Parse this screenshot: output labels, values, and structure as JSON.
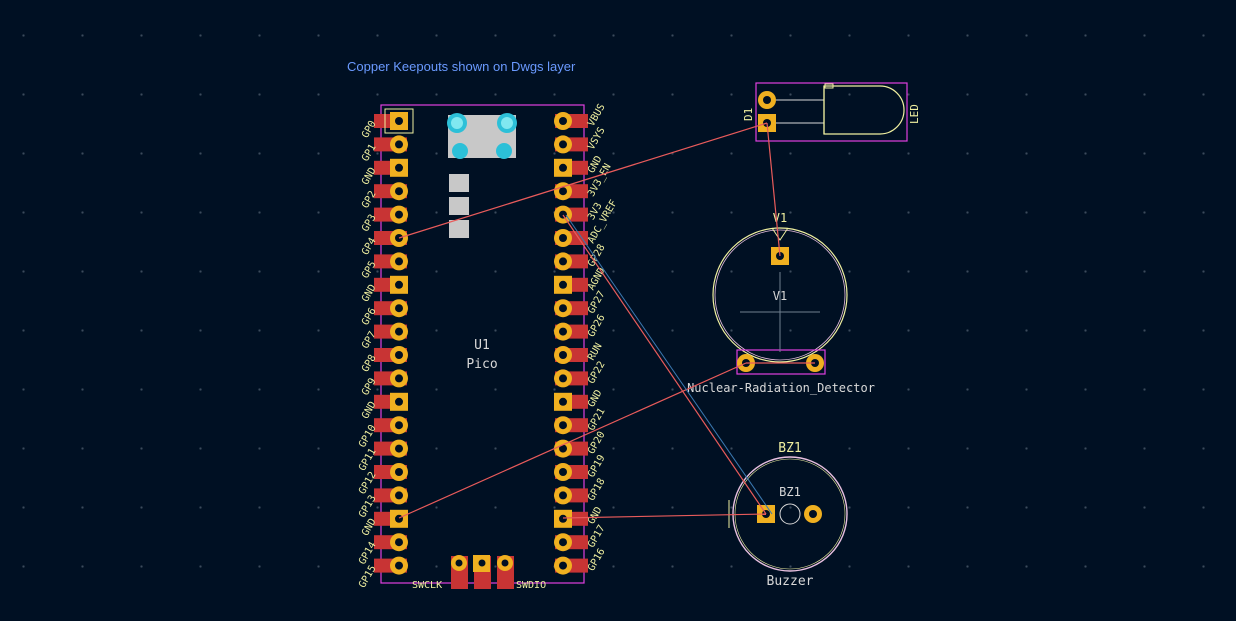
{
  "note": {
    "text": "Copper Keepouts shown on Dwgs layer"
  },
  "colors": {
    "background": "#001023",
    "pad": "#c83434",
    "pad_ring": "#f0b020",
    "silk": "#f0f0a0",
    "courtyard": "#e040e0",
    "ratsnest": "#e85b5b",
    "keepout": "#c8c8c8",
    "via": "#2cc0d8",
    "note": "#6a9aff",
    "fab": "#d8d8d8"
  },
  "pico": {
    "ref": "U1",
    "value": "Pico",
    "left_pins": [
      "GP0",
      "GP1",
      "GND",
      "GP2",
      "GP3",
      "GP4",
      "GP5",
      "GND",
      "GP6",
      "GP7",
      "GP8",
      "GP9",
      "GND",
      "GP10",
      "GP11",
      "GP12",
      "GP13",
      "GND",
      "GP14",
      "GP15"
    ],
    "right_pins": [
      "VBUS",
      "VSYS",
      "GND",
      "3V3_EN",
      "3V3",
      "ADC_VREF",
      "GP28",
      "AGND",
      "GP27",
      "GP26",
      "RUN",
      "GP22",
      "GND",
      "GP21",
      "GP20",
      "GP19",
      "GP18",
      "GND",
      "GP17",
      "GP16"
    ],
    "bottom_left_label": "SWCLK",
    "bottom_right_label": "SWDIO"
  },
  "led": {
    "ref": "D1",
    "value": "LED"
  },
  "detector": {
    "ref": "V1",
    "fab_ref": "V1",
    "value": "Nuclear-Radiation_Detector"
  },
  "buzzer": {
    "ref": "BZ1",
    "fab_ref": "BZ1",
    "value": "Buzzer"
  }
}
